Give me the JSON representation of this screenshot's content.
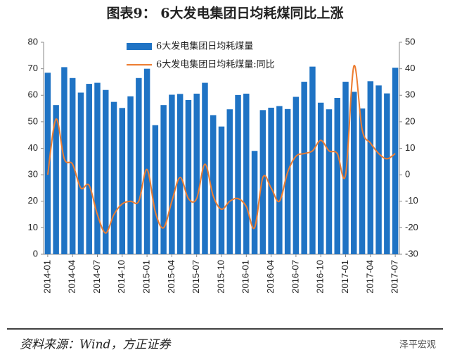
{
  "chart_data": {
    "type": "bar",
    "title": "图表9： 6大发电集团日均耗煤同比上涨",
    "source": "资料来源：Wind，方正证券",
    "watermark": "泽平宏观",
    "categories": [
      "2014-01",
      null,
      null,
      "2014-04",
      null,
      null,
      "2014-07",
      null,
      null,
      "2014-10",
      null,
      null,
      "2015-01",
      null,
      null,
      "2015-04",
      null,
      null,
      "2015-07",
      null,
      null,
      "2015-10",
      null,
      null,
      "2016-01",
      null,
      null,
      "2016-04",
      null,
      null,
      "2016-07",
      null,
      null,
      "2016-10",
      null,
      null,
      "2017-01",
      null,
      null,
      "2017-04",
      null,
      null,
      "2017-07"
    ],
    "series": [
      {
        "name": "6大发电集团日均耗煤量",
        "type": "bar",
        "color": "#1f73c4",
        "values": [
          68.5,
          56.3,
          70.6,
          66.5,
          61,
          64.3,
          64.7,
          62,
          57.5,
          55.2,
          59.6,
          66.5,
          70,
          48.7,
          56.3,
          60.2,
          60.5,
          58.2,
          60.6,
          64.7,
          52.5,
          48.2,
          54.7,
          60.1,
          60.6,
          39,
          54.4,
          55.3,
          55.9,
          54.8,
          59.4,
          65.1,
          70.8,
          57.2,
          54.7,
          59,
          65.1,
          61.3,
          55,
          65.3,
          63.7,
          60.7,
          70.4
        ]
      },
      {
        "name": "6大发电集团日均耗煤量:同比",
        "type": "line",
        "axis": "y2",
        "color": "#ed7d31",
        "values": [
          0,
          21,
          6,
          4,
          -5,
          -4,
          -15,
          -22,
          -15,
          -11,
          -10,
          -10,
          2,
          -14,
          -20,
          -10,
          -1,
          -9,
          -9,
          4,
          -8,
          -13,
          -10,
          -9,
          -12,
          -20,
          -1,
          -5,
          -10,
          1,
          7,
          8,
          9,
          13,
          9,
          8,
          0,
          41,
          17,
          12,
          8,
          6,
          8
        ]
      }
    ],
    "ylim": [
      0,
      80
    ],
    "yticks": [
      0,
      10,
      20,
      30,
      40,
      50,
      60,
      70,
      80
    ],
    "y2lim": [
      -30,
      50
    ],
    "y2ticks": [
      -30,
      -20,
      -10,
      0,
      10,
      20,
      30,
      40,
      50
    ]
  }
}
